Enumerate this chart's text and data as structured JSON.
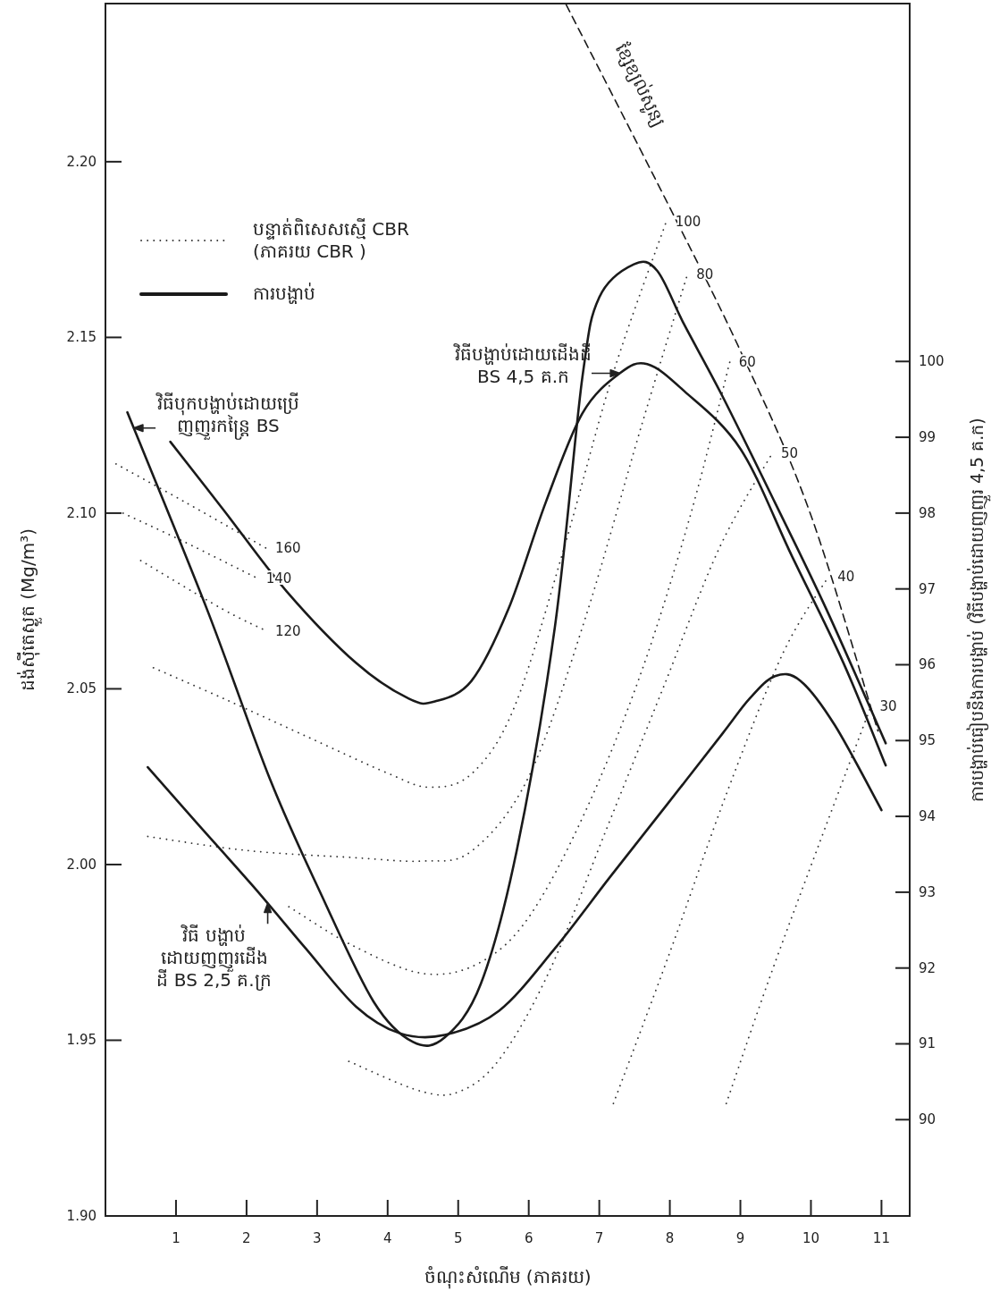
{
  "chart_data": {
    "type": "line",
    "xlabel": "ចំណុះសំណើម (ភាគរយ)",
    "ylabel": "ដង់ស៊ីតេស្ងួត (Mg/m³)",
    "y2label": "ការបង្ហាប់ធៀបនឹងការបង្ហាប់ (វិធីបង្ហាប់ដោយញញួរ 4,5 គ.ក)",
    "xlim": [
      0,
      11.4
    ],
    "xticks": [
      1,
      2,
      3,
      4,
      5,
      6,
      7,
      8,
      9,
      10,
      11
    ],
    "ylim": [
      1.9,
      2.245
    ],
    "yticks": [
      {
        "value": 1.9,
        "label": "1.90"
      },
      1.95,
      {
        "value": 2.0,
        "label": "2.00"
      },
      2.05,
      {
        "value": 2.1,
        "label": "2.10"
      },
      2.15,
      {
        "value": 2.2,
        "label": "2.20"
      }
    ],
    "y2lim": [
      88.73,
      104.72
    ],
    "y2ticks": [
      90,
      91,
      92,
      93,
      94,
      95,
      96,
      97,
      98,
      99,
      100
    ],
    "legend": "top left",
    "grid": false,
    "series": [
      {
        "name": "បន្ទាត់ពិសេសស្មើ CBR\n(ភាគរយ CBR )",
        "type": "line",
        "line_style": "dotted",
        "color": "#333333",
        "x": [
          0.15,
          1.14,
          2.28
        ],
        "values": [
          2.114,
          2.103,
          2.09
        ]
      },
      {
        "type": "line",
        "line_style": "dotted",
        "color": "#333333",
        "x": [
          0.25,
          1.1,
          2.15
        ],
        "values": [
          2.1,
          2.092,
          2.0815
        ]
      },
      {
        "type": "line",
        "line_style": "dotted",
        "color": "#333333",
        "x": [
          0.5,
          1.65,
          2.28
        ],
        "values": [
          2.0865,
          2.0728,
          2.0665
        ]
      },
      {
        "type": "line",
        "line_style": "dotted",
        "color": "#333333",
        "x": [
          0.68,
          1.7,
          2.9,
          4.0,
          4.6,
          5.2,
          5.8,
          6.5,
          7.2,
          7.95
        ],
        "values": [
          2.056,
          2.047,
          2.036,
          2.026,
          2.022,
          2.026,
          2.045,
          2.09,
          2.14,
          2.183
        ]
      },
      {
        "type": "line",
        "line_style": "dotted",
        "color": "#333333",
        "x": [
          0.6,
          2.0,
          3.5,
          4.5,
          5.2,
          6.0,
          6.8,
          7.6,
          8.25
        ],
        "values": [
          2.008,
          2.004,
          2.002,
          2.001,
          2.004,
          2.025,
          2.07,
          2.125,
          2.168
        ]
      },
      {
        "type": "line",
        "line_style": "dotted",
        "color": "#333333",
        "x": [
          2.6,
          3.5,
          4.5,
          5.3,
          6.0,
          6.8,
          7.6,
          8.3,
          8.85
        ],
        "values": [
          1.988,
          1.977,
          1.969,
          1.972,
          1.985,
          2.015,
          2.055,
          2.1,
          2.143
        ]
      },
      {
        "type": "line",
        "line_style": "dotted",
        "color": "#333333",
        "x": [
          3.45,
          4.47,
          5.03,
          5.6,
          6.3,
          7.1,
          7.9,
          8.7,
          9.45
        ],
        "values": [
          1.944,
          1.9355,
          1.9355,
          1.945,
          1.97,
          2.01,
          2.05,
          2.09,
          2.117
        ]
      },
      {
        "type": "line",
        "line_style": "dotted",
        "color": "#333333",
        "x": [
          7.2,
          8.0,
          8.8,
          9.6,
          10.25
        ],
        "values": [
          1.932,
          1.975,
          2.02,
          2.06,
          2.082
        ]
      },
      {
        "type": "line",
        "line_style": "dotted",
        "color": "#333333",
        "x": [
          8.8,
          9.4,
          10.1,
          10.85
        ],
        "values": [
          1.932,
          1.967,
          2.005,
          2.045
        ]
      },
      {
        "type": "line",
        "line_style": "dashed",
        "color": "#1a1a1a",
        "x": [
          6.53,
          7.94,
          9.0,
          9.98,
          10.95
        ],
        "values": [
          2.2447,
          2.1893,
          2.1462,
          2.1005,
          2.038
        ]
      },
      {
        "name": "ការបង្ហាប់",
        "line_style": "solid",
        "color": "#1a1a1a",
        "x": [
          0.31,
          1.44,
          2.33,
          3.06,
          3.8,
          4.36,
          4.81,
          5.32,
          5.83,
          6.37,
          6.76,
          7.0,
          7.49,
          7.82,
          8.2,
          8.74,
          9.49,
          10.22,
          11.06
        ],
        "values": [
          2.1287,
          2.0726,
          2.0244,
          1.9914,
          1.961,
          1.9495,
          1.9508,
          1.966,
          2.004,
          2.0675,
          2.1386,
          2.1614,
          2.1708,
          2.169,
          2.1538,
          2.1335,
          2.103,
          2.0726,
          2.0345
        ]
      },
      {
        "type": "line",
        "line_style": "solid",
        "color": "#1a1a1a",
        "x": [
          0.92,
          1.69,
          2.57,
          3.55,
          4.3,
          4.67,
          5.19,
          5.71,
          6.24,
          6.76,
          7.29,
          7.68,
          8.2,
          9.0,
          9.73,
          10.46,
          11.06
        ],
        "values": [
          2.1203,
          2.1005,
          2.0777,
          2.0574,
          2.0472,
          2.0464,
          2.0523,
          2.0726,
          2.103,
          2.1284,
          2.1398,
          2.1424,
          2.1348,
          2.1183,
          2.0878,
          2.0574,
          2.0282
        ]
      },
      {
        "type": "line",
        "line_style": "solid",
        "color": "#1a1a1a",
        "x": [
          0.6,
          1.3,
          2.09,
          2.84,
          3.55,
          4.17,
          4.81,
          5.58,
          6.37,
          7.15,
          7.95,
          8.74,
          9.13,
          9.49,
          9.85,
          10.34,
          11.0
        ],
        "values": [
          2.0277,
          2.0117,
          1.9939,
          1.9761,
          1.9596,
          1.952,
          1.9515,
          1.9584,
          1.9761,
          1.9964,
          2.0168,
          2.0371,
          2.0472,
          2.0536,
          2.0523,
          2.0396,
          2.0155
        ]
      }
    ],
    "annotations": [
      {
        "text": "វិធីបង្ហាប់ដោយដើងដី\nBS 4,5 គ.ក",
        "x": 7.29,
        "y": 2.1398
      },
      {
        "text": "វិធីបុកបង្ហាប់ដោយប្រើ\nញញួរកន្ត្រៃ BS",
        "x": 0.4,
        "y": 2.1242
      },
      {
        "text": "វិធី បង្ហាប់\nដោយញញួរដើង\nដី BS 2,5 គ.ក្រ",
        "x": 2.3,
        "y": 1.989
      },
      {
        "text": "ខ្សែខ្យល់សូន្យ",
        "x": 7.2,
        "y": 2.218
      },
      {
        "text": "160",
        "x": 2.28,
        "y": 2.09
      },
      {
        "text": "140",
        "x": 2.15,
        "y": 2.0815
      },
      {
        "text": "120",
        "x": 2.28,
        "y": 2.0665
      },
      {
        "text": "100",
        "x": 7.95,
        "y": 2.183
      },
      {
        "text": "80",
        "x": 8.25,
        "y": 2.168
      },
      {
        "text": "60",
        "x": 8.85,
        "y": 2.143
      },
      {
        "text": "50",
        "x": 9.45,
        "y": 2.117
      },
      {
        "text": "40",
        "x": 10.25,
        "y": 2.082
      },
      {
        "text": "30",
        "x": 10.85,
        "y": 2.045
      }
    ]
  }
}
